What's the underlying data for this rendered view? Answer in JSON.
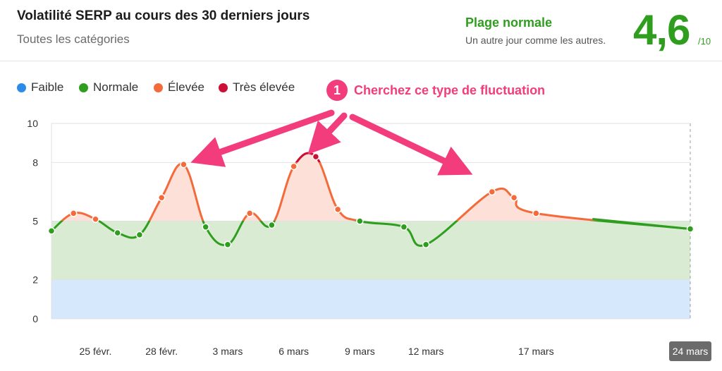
{
  "header": {
    "title": "Volatilité SERP au cours des 30 derniers jours",
    "subtitle": "Toutes les catégories",
    "status_title": "Plage normale",
    "status_desc": "Un autre jour comme les autres.",
    "score": "4,6",
    "score_max": "/10"
  },
  "legend": [
    {
      "label": "Faible",
      "color": "#2a8ce8"
    },
    {
      "label": "Normale",
      "color": "#2f9e1f"
    },
    {
      "label": "Élevée",
      "color": "#f46b3b"
    },
    {
      "label": "Très élevée",
      "color": "#cc0f35"
    }
  ],
  "callout": {
    "number": "1",
    "text": "Cherchez ce type de fluctuation",
    "color": "#f23c7c"
  },
  "chart_data": {
    "type": "line",
    "title": "Volatilité SERP au cours des 30 derniers jours",
    "ylim": [
      0,
      10
    ],
    "y_ticks": [
      0,
      2,
      5,
      8,
      10
    ],
    "xlim": [
      0,
      29
    ],
    "x_ticks": [
      {
        "x": 2,
        "label": "25 févr."
      },
      {
        "x": 5,
        "label": "28 févr."
      },
      {
        "x": 8,
        "label": "3 mars"
      },
      {
        "x": 11,
        "label": "6 mars"
      },
      {
        "x": 14,
        "label": "9 mars"
      },
      {
        "x": 17,
        "label": "12 mars"
      },
      {
        "x": 22,
        "label": "17 mars"
      },
      {
        "x": 29,
        "label": "24 mars"
      }
    ],
    "bands": [
      {
        "name": "Faible",
        "from": 0,
        "to": 2,
        "color": "#d6e8fb"
      },
      {
        "name": "Normale",
        "from": 2,
        "to": 5,
        "color": "#d9ecd3"
      },
      {
        "name": "Élevée",
        "from": 5,
        "to": 8,
        "color": "#fde0d7"
      },
      {
        "name": "Très élevée",
        "from": 8,
        "to": 10,
        "color": "#fde0d7"
      }
    ],
    "series": [
      {
        "points": [
          {
            "x": 0,
            "y": 4.5
          },
          {
            "x": 1,
            "y": 5.4
          },
          {
            "x": 2,
            "y": 5.1
          },
          {
            "x": 3,
            "y": 4.4
          },
          {
            "x": 4,
            "y": 4.3
          },
          {
            "x": 5,
            "y": 6.2
          },
          {
            "x": 6,
            "y": 7.9
          },
          {
            "x": 7,
            "y": 4.7
          },
          {
            "x": 8,
            "y": 3.8
          },
          {
            "x": 9,
            "y": 5.4
          },
          {
            "x": 10,
            "y": 4.8
          },
          {
            "x": 11,
            "y": 7.8
          },
          {
            "x": 12,
            "y": 8.3
          },
          {
            "x": 13,
            "y": 5.6
          },
          {
            "x": 14,
            "y": 5.0
          },
          {
            "x": 16,
            "y": 4.7
          },
          {
            "x": 17,
            "y": 3.8
          },
          {
            "x": 20,
            "y": 6.5
          },
          {
            "x": 21,
            "y": 6.2
          },
          {
            "x": 22,
            "y": 5.4
          },
          {
            "x": 29,
            "y": 4.6
          }
        ]
      }
    ],
    "grid": true
  }
}
